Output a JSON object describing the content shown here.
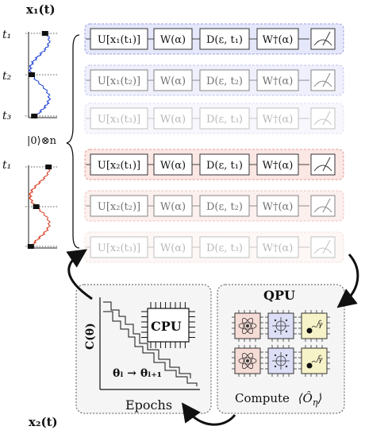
{
  "signals": {
    "x1_label": "x₁(t)",
    "x2_label": "x₂(t)",
    "t1": "t₁",
    "t2": "t₂",
    "t3": "t₃",
    "x2_t1": "t₁",
    "init_state": "|0⟩⊗n",
    "x1_color": "#1a3fd6",
    "x2_color": "#d9391f"
  },
  "circuits": {
    "group1_fill": "#e5e7fb",
    "group1_border": "#9aa0e0",
    "group2_fill": "#fbe7e4",
    "group2_border": "#e49b93",
    "rows": [
      {
        "group": 1,
        "opacity": 1.0,
        "gates": [
          "U[x₁(t₁)]",
          "W(α)",
          "D(ε, t₁)",
          "W†(α)"
        ]
      },
      {
        "group": 1,
        "opacity": 0.6,
        "gates": [
          "U[x₁(t₂)]",
          "W(α)",
          "D(ε, t₂)",
          "W†(α)"
        ]
      },
      {
        "group": 1,
        "opacity": 0.3,
        "gates": [
          "U[x₁(t₃)]",
          "W(α)",
          "D(ε, t₃)",
          "W†(α)"
        ]
      },
      {
        "group": 2,
        "opacity": 1.0,
        "gates": [
          "U[x₂(t₁)]",
          "W(α)",
          "D(ε, t₁)",
          "W†(α)"
        ]
      },
      {
        "group": 2,
        "opacity": 0.6,
        "gates": [
          "U[x₂(t₂)]",
          "W(α)",
          "D(ε, t₂)",
          "W†(α)"
        ]
      },
      {
        "group": 2,
        "opacity": 0.3,
        "gates": [
          "U[x₂(t₃)]",
          "W(α)",
          "D(ε, t₃)",
          "W†(α)"
        ]
      }
    ]
  },
  "cpu_panel": {
    "ylabel": "C(θ)",
    "xlabel": "Epochs",
    "chip": "CPU",
    "update": "θₗ → θₗ₊₁"
  },
  "qpu_panel": {
    "title": "QPU",
    "compute": "Compute",
    "observable": "⟨Ô",
    "observable_sub": "η",
    "observable_close": "⟩"
  }
}
